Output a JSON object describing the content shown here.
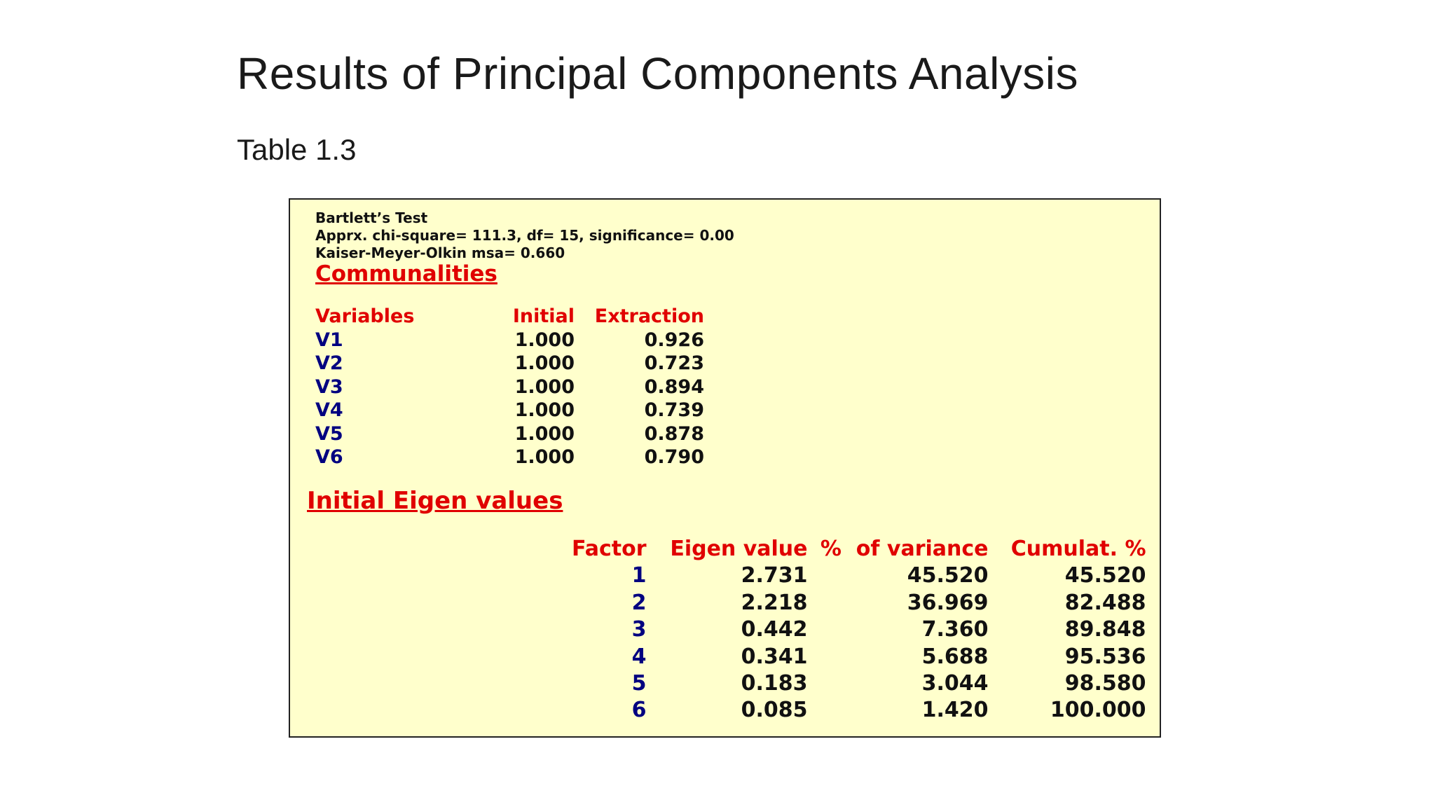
{
  "slide": {
    "title": "Results of Principal Components Analysis",
    "subtitle": "Table 1.3"
  },
  "tests": {
    "bartlett_heading": "Bartlett’s Test",
    "chi_square_line": "Apprx. chi-square= 111.3, df= 15, significance= 0.00",
    "kmo_line": "Kaiser-Meyer-Olkin msa= 0.660"
  },
  "communalities": {
    "heading": "Communalities",
    "headers": {
      "variables": "Variables",
      "initial": "Initial",
      "extraction": "Extraction"
    },
    "rows": [
      {
        "variable": "V1",
        "initial": "1.000",
        "extraction": "0.926"
      },
      {
        "variable": "V2",
        "initial": "1.000",
        "extraction": "0.723"
      },
      {
        "variable": "V3",
        "initial": "1.000",
        "extraction": "0.894"
      },
      {
        "variable": "V4",
        "initial": "1.000",
        "extraction": "0.739"
      },
      {
        "variable": "V5",
        "initial": "1.000",
        "extraction": "0.878"
      },
      {
        "variable": "V6",
        "initial": "1.000",
        "extraction": "0.790"
      }
    ]
  },
  "eigenvalues": {
    "heading": "Initial Eigen values",
    "headers": {
      "factor": "Factor",
      "eigen_value": "Eigen value",
      "pct_variance": "%  of variance",
      "cumulative": "Cumulat. %"
    },
    "rows": [
      {
        "factor": "1",
        "eigen_value": "2.731",
        "pct_variance": "45.520",
        "cumulative": "45.520"
      },
      {
        "factor": "2",
        "eigen_value": "2.218",
        "pct_variance": "36.969",
        "cumulative": "82.488"
      },
      {
        "factor": "3",
        "eigen_value": "0.442",
        "pct_variance": "7.360",
        "cumulative": "89.848"
      },
      {
        "factor": "4",
        "eigen_value": "0.341",
        "pct_variance": "5.688",
        "cumulative": "95.536"
      },
      {
        "factor": "5",
        "eigen_value": "0.183",
        "pct_variance": "3.044",
        "cumulative": "98.580"
      },
      {
        "factor": "6",
        "eigen_value": "0.085",
        "pct_variance": "1.420",
        "cumulative": "100.000"
      }
    ]
  },
  "colors": {
    "box_background": "#ffffcc",
    "heading_red": "#e00000",
    "variable_navy": "#000080"
  }
}
